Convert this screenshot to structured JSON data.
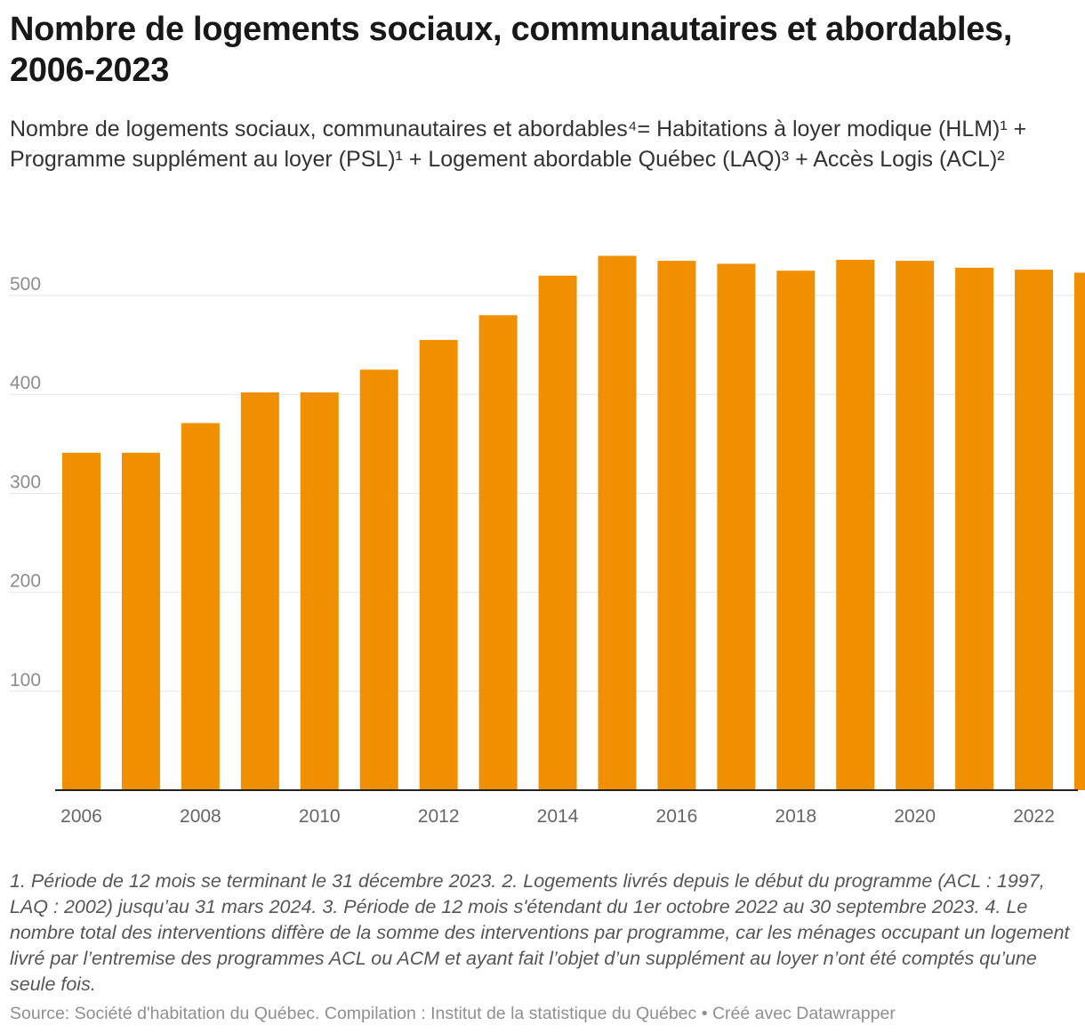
{
  "title": "Nombre de logements sociaux, communautaires et abordables, 2006-2023",
  "subtitle": "Nombre de logements sociaux, communautaires et abordables⁴= Habitations à loyer modique (HLM)¹ + Programme supplément au loyer (PSL)¹ + Logement abordable Québec (LAQ)³ + Accès Logis (ACL)²",
  "notes": "1. Période de 12 mois se terminant le 31 décembre 2023. 2. Logements livrés depuis le début du programme (ACL : 1997, LAQ : 2002) jusqu’au 31 mars 2024. 3. Période de 12 mois s'étendant du 1er octobre 2022 au 30 septembre 2023. 4. Le nombre total des interventions diffère de la somme des interventions par programme, car les ménages occupant un logement livré par l’entremise des programmes ACL ou ACM et ayant fait l’objet d’un supplément au loyer n’ont été comptés qu’une seule fois.",
  "source": "Source: Société d'habitation du Québec. Compilation : Institut de la statistique du Québec • Créé avec Datawrapper",
  "colors": {
    "bar": "#f08f00",
    "gridline": "#e6e6e6",
    "baseline": "#222222"
  },
  "chart_data": {
    "type": "bar",
    "title": "Nombre de logements sociaux, communautaires et abordables, 2006-2023",
    "xlabel": "",
    "ylabel": "",
    "categories": [
      "2006",
      "2007",
      "2008",
      "2009",
      "2010",
      "2011",
      "2012",
      "2013",
      "2014",
      "2015",
      "2016",
      "2017",
      "2018",
      "2019",
      "2020",
      "2021",
      "2022",
      "2023"
    ],
    "values": [
      341,
      341,
      371,
      402,
      402,
      425,
      455,
      480,
      520,
      540,
      535,
      532,
      525,
      536,
      535,
      528,
      526,
      523
    ],
    "x_tick_labels": [
      "2006",
      "2008",
      "2010",
      "2012",
      "2014",
      "2016",
      "2018",
      "2020",
      "2022"
    ],
    "y_ticks": [
      100,
      200,
      300,
      400,
      500
    ],
    "ylim": [
      0,
      540
    ],
    "grid": true,
    "legend": "none"
  }
}
